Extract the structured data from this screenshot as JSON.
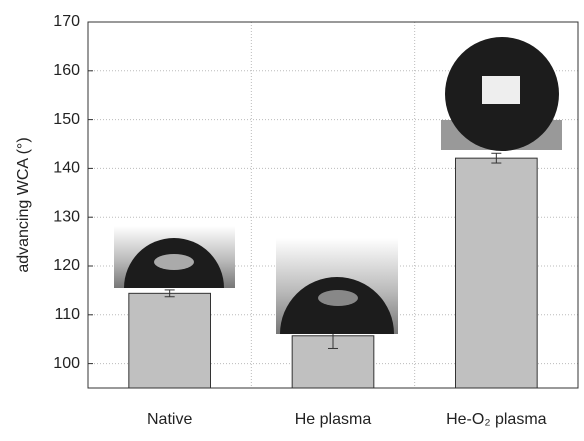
{
  "chart_data": {
    "type": "bar",
    "y_label": "advancing WCA (°)",
    "categories": [
      "Native",
      "He plasma",
      "He-O₂ plasma"
    ],
    "values": [
      114.4,
      105.7,
      142.1
    ],
    "errors": [
      0.7,
      2.6,
      1.0
    ],
    "color": "#c0c0c0",
    "ylim": [
      95,
      170
    ],
    "yticks": [
      100,
      110,
      120,
      130,
      140,
      150,
      160,
      170
    ],
    "grid": true
  }
}
